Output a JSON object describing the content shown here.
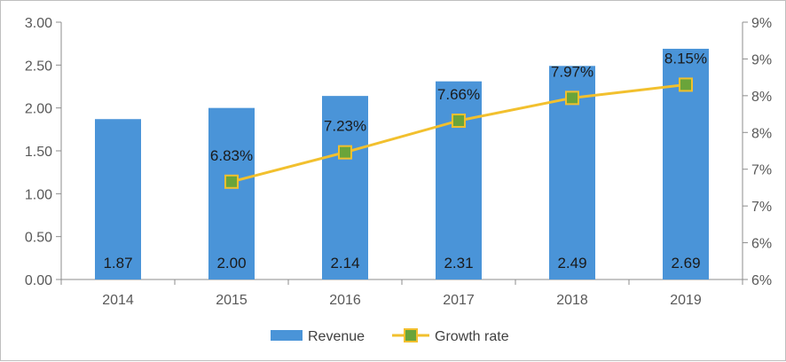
{
  "chart_data": {
    "type": "bar",
    "title": "",
    "categories": [
      "2014",
      "2015",
      "2016",
      "2017",
      "2018",
      "2019"
    ],
    "series": [
      {
        "name": "Revenue",
        "type": "bar",
        "axis": "left",
        "color": "#4a94d8",
        "values": [
          1.87,
          2.0,
          2.14,
          2.31,
          2.49,
          2.69
        ],
        "labels": [
          "1.87",
          "2.00",
          "2.14",
          "2.31",
          "2.49",
          "2.69"
        ]
      },
      {
        "name": "Growth rate",
        "type": "line",
        "axis": "right",
        "color": "#f2c02e",
        "marker_color": "#6aa43a",
        "values": [
          null,
          6.83,
          7.23,
          7.66,
          7.97,
          8.15
        ],
        "labels": [
          "",
          "6.83%",
          "7.23%",
          "7.66%",
          "7.97%",
          "8.15%"
        ]
      }
    ],
    "y_left": {
      "ylim": [
        0,
        3
      ],
      "ticks": [
        0,
        0.5,
        1,
        1.5,
        2,
        2.5,
        3
      ],
      "tick_labels": [
        "0.00",
        "0.50",
        "1.00",
        "1.50",
        "2.00",
        "2.50",
        "3.00"
      ]
    },
    "y_right": {
      "ylim": [
        5.5,
        9
      ],
      "ticks": [
        5.5,
        6,
        6.5,
        7,
        7.5,
        8,
        8.5,
        9
      ],
      "tick_labels": [
        "6%",
        "6%",
        "7%",
        "7%",
        "8%",
        "8%",
        "9%",
        "9%"
      ]
    },
    "grid": false,
    "legend": "bottom-center"
  }
}
